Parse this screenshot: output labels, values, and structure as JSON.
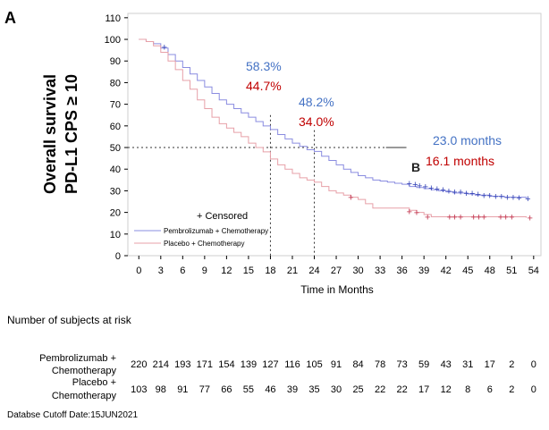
{
  "chart_data": {
    "type": "line",
    "panel_label": "A",
    "ylabel_lines": [
      "Overall survival",
      "PD-L1 CPS ≥ 10"
    ],
    "xlabel": "Time in Months",
    "x_ticks": [
      0,
      3,
      6,
      9,
      12,
      15,
      18,
      21,
      24,
      27,
      30,
      33,
      36,
      39,
      42,
      45,
      48,
      51,
      54
    ],
    "y_ticks": [
      0,
      10,
      20,
      30,
      40,
      50,
      60,
      70,
      80,
      90,
      100,
      110
    ],
    "xlim": [
      -1.5,
      55
    ],
    "ylim": [
      0,
      112
    ],
    "reference_lines": {
      "median_y": 50,
      "landmark_x": [
        18,
        24
      ]
    },
    "colors": {
      "pembro": "#8a8ce0",
      "placebo": "#e7a0a8",
      "pembro_text": "#4472c4",
      "placebo_text": "#c00000",
      "pembro_censor": "#2f3fb4",
      "placebo_censor": "#c0304a"
    },
    "series": [
      {
        "name": "Pembrolizumab + Chemotherapy",
        "x": [
          0,
          1,
          2,
          3,
          4,
          5,
          6,
          7,
          8,
          9,
          10,
          11,
          12,
          13,
          14,
          15,
          16,
          17,
          18,
          19,
          20,
          21,
          22,
          23,
          24,
          25,
          26,
          27,
          28,
          29,
          30,
          31,
          32,
          33,
          34,
          35,
          36,
          37,
          38,
          39,
          40,
          41,
          42,
          43,
          44,
          45,
          46,
          47,
          48,
          49,
          50,
          51,
          52,
          53
        ],
        "y": [
          100,
          99,
          98,
          96,
          93,
          90,
          87,
          84,
          81,
          78,
          75,
          72,
          70,
          68,
          66,
          64,
          62,
          60,
          58.3,
          56,
          54,
          52,
          50.5,
          49,
          48.2,
          46,
          44,
          42,
          40,
          38.5,
          37,
          36,
          35,
          34.5,
          34,
          33.5,
          33,
          32,
          31.5,
          31,
          30.5,
          30,
          29.5,
          29,
          29,
          28.5,
          28,
          28,
          27.5,
          27.5,
          27,
          27,
          27,
          26.5
        ],
        "censor_x": [
          3.5,
          37,
          37.8,
          38.4,
          39.2,
          40,
          40.8,
          41.6,
          42.4,
          43.2,
          44,
          44.8,
          45.6,
          46.4,
          47.2,
          48,
          48.8,
          49.6,
          50.4,
          51.2,
          52,
          53.2
        ],
        "censor_y": [
          96.5,
          33.5,
          33,
          32.5,
          32,
          31.5,
          31,
          30.5,
          30,
          29.5,
          29.5,
          29,
          29,
          28.5,
          28,
          28,
          27.5,
          27.5,
          27,
          27,
          26.8,
          26.5
        ],
        "median_label": "23.0 months",
        "landmark_labels": [
          "58.3%",
          "48.2%"
        ]
      },
      {
        "name": "Placebo + Chemotherapy",
        "x": [
          0,
          1,
          2,
          3,
          4,
          5,
          6,
          7,
          8,
          9,
          10,
          11,
          12,
          13,
          14,
          15,
          16,
          17,
          18,
          19,
          20,
          21,
          22,
          23,
          24,
          25,
          26,
          27,
          28,
          29,
          30,
          31,
          32,
          33,
          34,
          35,
          36,
          37,
          38,
          39,
          40,
          41,
          42,
          43,
          44,
          45,
          46,
          47,
          48,
          49,
          50,
          51,
          52,
          53
        ],
        "y": [
          100,
          99,
          97,
          94,
          90,
          86,
          81,
          77,
          72,
          68,
          64,
          61,
          59,
          57,
          55,
          52,
          50,
          48,
          44.7,
          42,
          40,
          38,
          36,
          35,
          34,
          32,
          30,
          29,
          28,
          27,
          26,
          24,
          22,
          22,
          22,
          22,
          22,
          21,
          20,
          19,
          18,
          18,
          18,
          18,
          18,
          18,
          18,
          18,
          18,
          18,
          18,
          18,
          18,
          17.5
        ],
        "censor_x": [
          29,
          37,
          38,
          39.5,
          42.5,
          43.2,
          44,
          45.8,
          46.5,
          47.2,
          49.5,
          50.2,
          51,
          53.5
        ],
        "censor_y": [
          27,
          20.5,
          20,
          18,
          18,
          18,
          18,
          18,
          18,
          18,
          18,
          18,
          18,
          17.5
        ],
        "median_label": "16.1 months",
        "landmark_labels": [
          "44.7%",
          "34.0%"
        ]
      }
    ],
    "legend_censored": "+ Censored",
    "legend_position": "lower-left",
    "grid": false,
    "overlap_glyph": "B"
  },
  "risk_table": {
    "title": "Number of subjects at risk",
    "rows": [
      {
        "name_lines": [
          "Pembrolizumab +",
          "Chemotherapy"
        ],
        "values": [
          "220",
          "214",
          "193",
          "171",
          "154",
          "139",
          "127",
          "116",
          "105",
          "91",
          "84",
          "78",
          "73",
          "59",
          "43",
          "31",
          "17",
          "2",
          "0"
        ]
      },
      {
        "name_lines": [
          "Placebo +",
          "Chemotherapy"
        ],
        "values": [
          "103",
          "98",
          "91",
          "77",
          "66",
          "55",
          "46",
          "39",
          "35",
          "30",
          "25",
          "22",
          "22",
          "17",
          "12",
          "8",
          "6",
          "2",
          "0"
        ]
      }
    ]
  },
  "footer": "Databse Cutoff Date:15JUN2021"
}
